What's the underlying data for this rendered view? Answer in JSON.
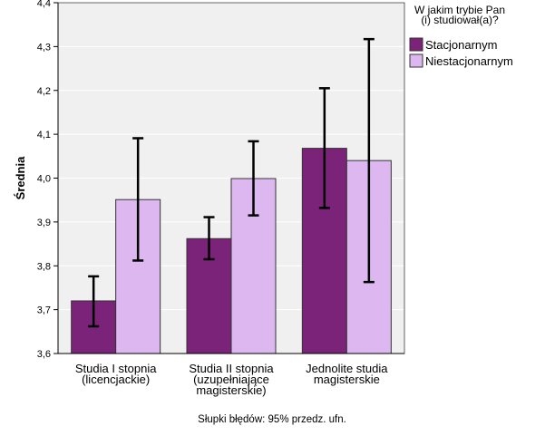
{
  "chart_data": {
    "type": "bar",
    "categories": [
      [
        "Studia I stopnia",
        "(licencjackie)"
      ],
      [
        "Studia II stopnia",
        "(uzupełniające",
        "magisterskie)"
      ],
      [
        "Jednolite studia",
        "magisterskie"
      ]
    ],
    "series": [
      {
        "name": "Stacjonarnym",
        "color": "#7b2378",
        "values": [
          3.72,
          3.862,
          4.068
        ],
        "ci_low": [
          3.662,
          3.815,
          3.932
        ],
        "ci_high": [
          3.776,
          3.911,
          4.205
        ]
      },
      {
        "name": "Niestacjonarnym",
        "color": "#ddb8f0",
        "values": [
          3.951,
          3.999,
          4.04
        ],
        "ci_low": [
          3.812,
          3.915,
          3.763
        ],
        "ci_high": [
          4.091,
          4.084,
          4.317
        ]
      }
    ],
    "ylabel": "Średnia",
    "xlabel": "",
    "ylim": [
      3.6,
      4.4
    ],
    "yticks": [
      "3,6",
      "3,7",
      "3,8",
      "3,9",
      "4,0",
      "4,1",
      "4,2",
      "4,3",
      "4,4"
    ],
    "ytick_values": [
      3.6,
      3.7,
      3.8,
      3.9,
      4.0,
      4.1,
      4.2,
      4.3,
      4.4
    ],
    "legend": {
      "title": [
        "W jakim trybie Pan",
        "(i) studiował(a)?"
      ],
      "position": "top-right"
    },
    "footnote": "Słupki błędów: 95% przedz. ufn.",
    "grid": true,
    "plot_background": "#f0f0f0",
    "gridline_color": "#ffffff"
  }
}
